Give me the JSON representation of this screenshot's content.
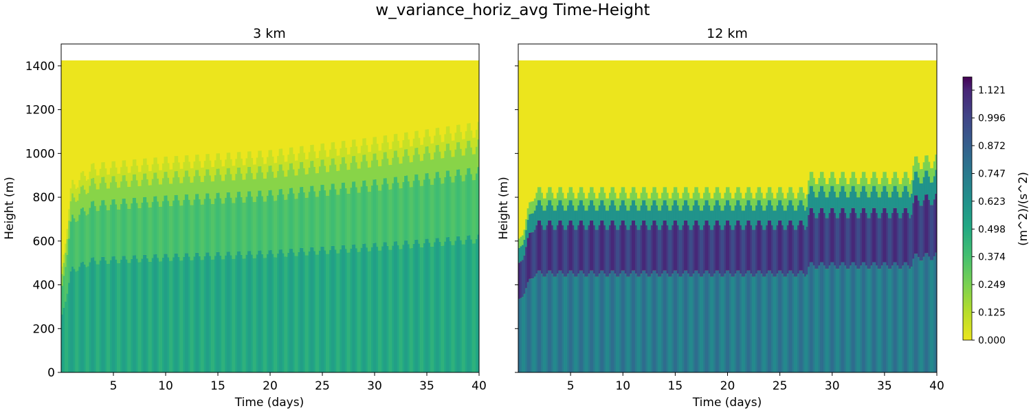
{
  "chart_data": {
    "type": "heatmap",
    "title": "w_variance_horiz_avg Time-Height",
    "colorbar": {
      "label": "(m^2)/(s^2)",
      "ticks": [
        "0.000",
        "0.125",
        "0.249",
        "0.374",
        "0.498",
        "0.623",
        "0.747",
        "0.872",
        "0.996",
        "1.121"
      ],
      "range": [
        0,
        1.18
      ]
    },
    "panels": [
      {
        "title": "3 km",
        "xlabel": "Time (days)",
        "ylabel": "Height (m)",
        "xlim": [
          0,
          40
        ],
        "ylim": [
          0,
          1500
        ],
        "xticks": [
          "5",
          "10",
          "15",
          "20",
          "25",
          "30",
          "35",
          "40"
        ],
        "yticks": [
          "0",
          "200",
          "400",
          "600",
          "800",
          "1000",
          "1200",
          "1400"
        ],
        "domain_top_m": 1425,
        "boundary_layer_top": [
          {
            "day": 0,
            "height": 450
          },
          {
            "day": 1,
            "height": 880
          },
          {
            "day": 3,
            "height": 960
          },
          {
            "day": 10,
            "height": 990
          },
          {
            "day": 20,
            "height": 1020
          },
          {
            "day": 30,
            "height": 1080
          },
          {
            "day": 40,
            "height": 1150
          }
        ],
        "typical_value_lower": 0.55,
        "typical_value_mid": 0.4,
        "diurnal_cycles": 40
      },
      {
        "title": "12 km",
        "xlabel": "Time (days)",
        "ylabel": "Height (m)",
        "xlim": [
          0,
          40
        ],
        "ylim": [
          0,
          1500
        ],
        "xticks": [
          "5",
          "10",
          "15",
          "20",
          "25",
          "30",
          "35",
          "40"
        ],
        "yticks": [],
        "domain_top_m": 1425,
        "boundary_layer_top": [
          {
            "day": 0,
            "height": 600
          },
          {
            "day": 1.5,
            "height": 850
          },
          {
            "day": 27.5,
            "height": 850
          },
          {
            "day": 27.8,
            "height": 920
          },
          {
            "day": 37.5,
            "height": 920
          },
          {
            "day": 37.8,
            "height": 990
          },
          {
            "day": 40,
            "height": 1000
          }
        ],
        "typical_value_lower": 0.8,
        "typical_value_mid": 1.12,
        "diurnal_cycles": 40
      }
    ]
  }
}
